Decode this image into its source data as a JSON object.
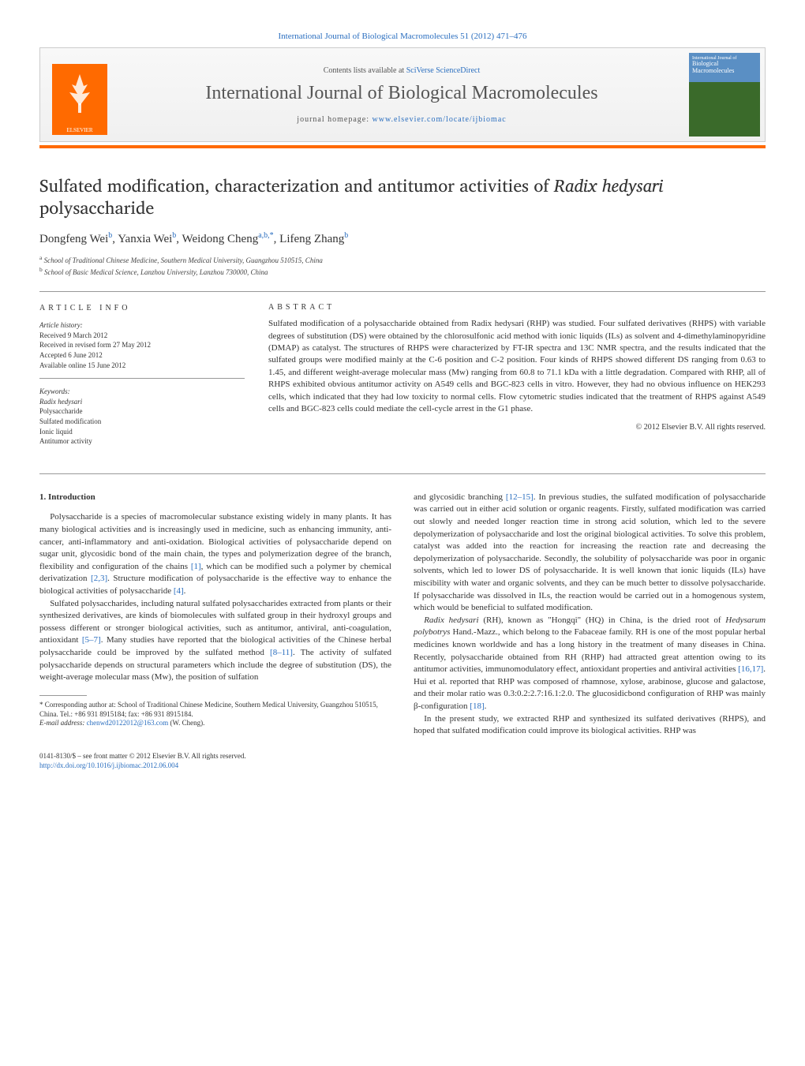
{
  "top_citation": "International Journal of Biological Macromolecules 51 (2012) 471–476",
  "banner": {
    "contents_prefix": "Contents lists available at ",
    "contents_link": "SciVerse ScienceDirect",
    "journal_name": "International Journal of Biological Macromolecules",
    "homepage_prefix": "journal homepage: ",
    "homepage_url": "www.elsevier.com/locate/ijbiomac",
    "publisher_label": "ELSEVIER",
    "cover_label_top": "International Journal of",
    "cover_label_main": "Biological Macromolecules"
  },
  "title_html": "Sulfated modification, characterization and antitumor activities of <em>Radix hedysari</em> polysaccharide",
  "authors": [
    {
      "name": "Dongfeng Wei",
      "sup": "b"
    },
    {
      "name": "Yanxia Wei",
      "sup": "b"
    },
    {
      "name": "Weidong Cheng",
      "sup": "a,b,*"
    },
    {
      "name": "Lifeng Zhang",
      "sup": "b"
    }
  ],
  "affiliations": [
    {
      "sup": "a",
      "text": "School of Traditional Chinese Medicine, Southern Medical University, Guangzhou 510515, China"
    },
    {
      "sup": "b",
      "text": "School of Basic Medical Science, Lanzhou University, Lanzhou 730000, China"
    }
  ],
  "article_info": {
    "heading": "ARTICLE INFO",
    "history_label": "Article history:",
    "history": [
      "Received 9 March 2012",
      "Received in revised form 27 May 2012",
      "Accepted 6 June 2012",
      "Available online 15 June 2012"
    ],
    "keywords_label": "Keywords:",
    "keywords": [
      "Radix hedysari",
      "Polysaccharide",
      "Sulfated modification",
      "Ionic liquid",
      "Antitumor activity"
    ]
  },
  "abstract": {
    "heading": "ABSTRACT",
    "text": "Sulfated modification of a polysaccharide obtained from Radix hedysari (RHP) was studied. Four sulfated derivatives (RHPS) with variable degrees of substitution (DS) were obtained by the chlorosulfonic acid method with ionic liquids (ILs) as solvent and 4-dimethylaminopyridine (DMAP) as catalyst. The structures of RHPS were characterized by FT-IR spectra and 13C NMR spectra, and the results indicated that the sulfated groups were modified mainly at the C-6 position and C-2 position. Four kinds of RHPS showed different DS ranging from 0.63 to 1.45, and different weight-average molecular mass (Mw) ranging from 60.8 to 71.1 kDa with a little degradation. Compared with RHP, all of RHPS exhibited obvious antitumor activity on A549 cells and BGC-823 cells in vitro. However, they had no obvious influence on HEK293 cells, which indicated that they had low toxicity to normal cells. Flow cytometric studies indicated that the treatment of RHPS against A549 cells and BGC-823 cells could mediate the cell-cycle arrest in the G1 phase.",
    "copyright": "© 2012 Elsevier B.V. All rights reserved."
  },
  "sections": {
    "intro_heading": "1. Introduction",
    "para1": "Polysaccharide is a species of macromolecular substance existing widely in many plants. It has many biological activities and is increasingly used in medicine, such as enhancing immunity, anti-cancer, anti-inflammatory and anti-oxidation. Biological activities of polysaccharide depend on sugar unit, glycosidic bond of the main chain, the types and polymerization degree of the branch, flexibility and configuration of the chains ",
    "para1_ref1": "[1]",
    "para1_cont": ", which can be modified such a polymer by chemical derivatization ",
    "para1_ref2": "[2,3]",
    "para1_cont2": ". Structure modification of polysaccharide is the effective way to enhance the biological activities of polysaccharide ",
    "para1_ref3": "[4]",
    "para1_end": ".",
    "para2": "Sulfated polysaccharides, including natural sulfated polysaccharides extracted from plants or their synthesized derivatives, are kinds of biomolecules with sulfated group in their hydroxyl groups and possess different or stronger biological activities, such as antitumor, antiviral, anti-coagulation, antioxidant ",
    "para2_ref1": "[5–7]",
    "para2_cont": ". Many studies have reported that the biological activities of the Chinese herbal polysaccharide could be improved by the sulfated method ",
    "para2_ref2": "[8–11]",
    "para2_cont2": ". The activity of sulfated polysaccharide depends on structural parameters which include the degree of substitution (DS), the weight-average molecular mass (Mw), the position of sulfation",
    "para3_start": "and glycosidic branching ",
    "para3_ref1": "[12–15]",
    "para3_cont": ". In previous studies, the sulfated modification of polysaccharide was carried out in either acid solution or organic reagents. Firstly, sulfated modification was carried out slowly and needed longer reaction time in strong acid solution, which led to the severe depolymerization of polysaccharide and lost the original biological activities. To solve this problem, catalyst was added into the reaction for increasing the reaction rate and decreasing the depolymerization of polysaccharide. Secondly, the solubility of polysaccharide was poor in organic solvents, which led to lower DS of polysaccharide. It is well known that ionic liquids (ILs) have miscibility with water and organic solvents, and they can be much better to dissolve polysaccharide. If polysaccharide was dissolved in ILs, the reaction would be carried out in a homogenous system, which would be beneficial to sulfated modification.",
    "para4_html": "<em>Radix hedysari</em> (RH), known as \"Hongqi\" (HQ) in China, is the dried root of <em>Hedysarum polybotrys</em> Hand.-Mazz., which belong to the Fabaceae family. RH is one of the most popular herbal medicines known worldwide and has a long history in the treatment of many diseases in China. Recently, polysaccharide obtained from RH (RHP) had attracted great attention owing to its antitumor activities, immunomodulatory effect, antioxidant properties and antiviral activities ",
    "para4_ref1": "[16,17]",
    "para4_cont": ". Hui et al. reported that RHP was composed of rhamnose, xylose, arabinose, glucose and galactose, and their molar ratio was 0.3:0.2:2.7:16.1:2.0. The glucosidicbond configuration of RHP was mainly β-configuration ",
    "para4_ref2": "[18]",
    "para4_end": ".",
    "para5": "In the present study, we extracted RHP and synthesized its sulfated derivatives (RHPS), and hoped that sulfated modification could improve its biological activities. RHP was"
  },
  "corr": {
    "text": "* Corresponding author at: School of Traditional Chinese Medicine, Southern Medical University, Guangzhou 510515, China. Tel.: +86 931 8915184; fax: +86 931 8915184.",
    "email_label": "E-mail address: ",
    "email": "chenwd20122012@163.com",
    "email_suffix": " (W. Cheng)."
  },
  "footer": {
    "line1": "0141-8130/$ – see front matter © 2012 Elsevier B.V. All rights reserved.",
    "doi": "http://dx.doi.org/10.1016/j.ijbiomac.2012.06.004"
  },
  "colors": {
    "link": "#2a6ebf",
    "orange": "#ff6a00",
    "rule": "#999999",
    "text": "#333333"
  }
}
